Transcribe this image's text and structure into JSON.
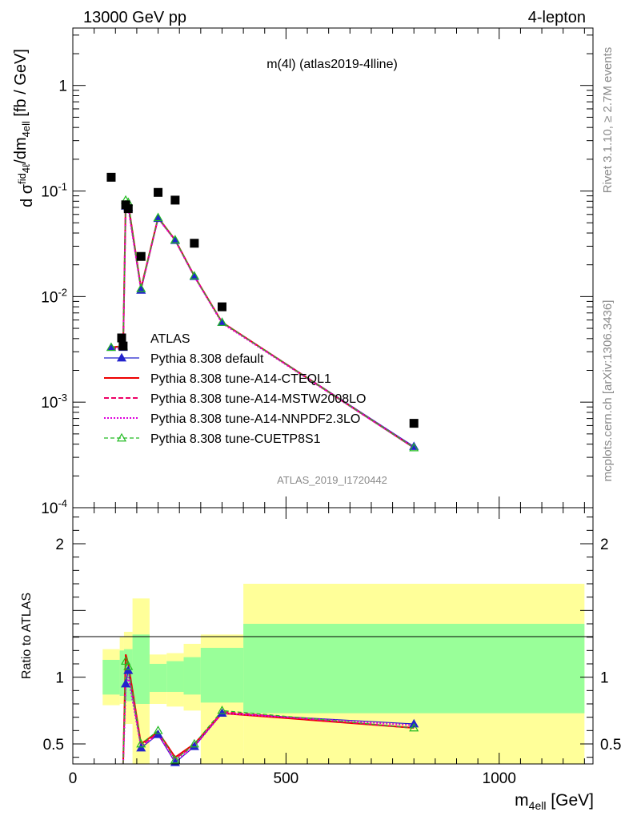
{
  "header": {
    "left": "13000 GeV pp",
    "right": "4-lepton"
  },
  "plot_title": "m(4l) (atlas2019-4lline)",
  "analysis_id": "ATLAS_2019_I1720442",
  "side_text": {
    "rivet": "Rivet 3.1.10, ≥ 2.7M events",
    "mcplots": "mcplots.cern.ch [arXiv:1306.3436]"
  },
  "colors": {
    "default": "#2222cc",
    "a14_cteql1": "#ee0000",
    "a14_mstw": "#ee0066",
    "a14_nnpdf": "#dd00dd",
    "cuetp8s1": "#22bb22",
    "band_inner": "#99ff99",
    "band_outer": "#ffff99"
  },
  "chart_data": [
    {
      "type": "line",
      "name": "main",
      "scale": "log",
      "ylabel": "dσ^fid_4ℓ/dm_4ℓ [fb / GeV]",
      "xlim": [
        0,
        1220
      ],
      "ylim": [
        0.0001,
        3.5
      ],
      "y_ticks": [
        "10^-4",
        "10^-3",
        "10^-2",
        "10^-1",
        "1"
      ],
      "legend_position": "center-left",
      "x": [
        90,
        118,
        124,
        130,
        160,
        200,
        240,
        285,
        350,
        800
      ],
      "data": {
        "name": "ATLAS",
        "marker": "square",
        "values": [
          0.135,
          0.0034,
          0.074,
          0.068,
          0.024,
          0.097,
          0.082,
          0.032,
          0.008,
          0.00063
        ]
      },
      "series": [
        {
          "name": "Pythia 8.308 default",
          "style": "solid-triangle",
          "values": [
            0.0033,
            0.0033,
            0.072,
            0.07,
            0.0115,
            0.055,
            0.034,
            0.0155,
            0.0057,
            0.00038
          ]
        },
        {
          "name": "Pythia 8.308 tune-A14-CTEQL1",
          "style": "solid",
          "values": [
            0.0033,
            0.0034,
            0.079,
            0.076,
            0.012,
            0.056,
            0.0345,
            0.0157,
            0.0057,
            0.00037
          ]
        },
        {
          "name": "Pythia 8.308 tune-A14-MSTW2008LO",
          "style": "dashed",
          "values": [
            0.0032,
            0.0033,
            0.076,
            0.074,
            0.0118,
            0.0555,
            0.0342,
            0.0156,
            0.0057,
            0.00037
          ]
        },
        {
          "name": "Pythia 8.308 tune-A14-NNPDF2.3LO",
          "style": "dotted",
          "values": [
            0.0032,
            0.0032,
            0.07,
            0.069,
            0.0116,
            0.055,
            0.034,
            0.0155,
            0.0056,
            0.00037
          ]
        },
        {
          "name": "Pythia 8.308 tune-CUETP8S1",
          "style": "dashed-open-triangle",
          "values": [
            0.0033,
            0.0034,
            0.082,
            0.078,
            0.0119,
            0.056,
            0.0345,
            0.0157,
            0.0057,
            0.00037
          ]
        }
      ]
    },
    {
      "type": "line",
      "name": "ratio",
      "ylabel": "Ratio to ATLAS",
      "xlabel": "m_4ℓ [GeV]",
      "xlim": [
        0,
        1220
      ],
      "ylim": [
        0.35,
        2.27
      ],
      "x_ticks": [
        0,
        500,
        1000
      ],
      "y_ticks": [
        0.5,
        1,
        2
      ],
      "reference_line": 1,
      "bands": [
        {
          "x0": 70,
          "x1": 110,
          "inner": [
            0.87,
            1.13
          ],
          "outer": [
            0.79,
            1.21
          ]
        },
        {
          "x0": 110,
          "x1": 120,
          "inner": [
            0.86,
            1.2
          ],
          "outer": [
            0.8,
            1.3
          ]
        },
        {
          "x0": 120,
          "x1": 140,
          "inner": [
            0.82,
            1.21
          ],
          "outer": [
            0.65,
            1.34
          ]
        },
        {
          "x0": 140,
          "x1": 180,
          "inner": [
            0.8,
            1.32
          ],
          "outer": [
            0.3,
            1.59
          ]
        },
        {
          "x0": 180,
          "x1": 220,
          "inner": [
            0.89,
            1.1
          ],
          "outer": [
            0.8,
            1.17
          ]
        },
        {
          "x0": 220,
          "x1": 260,
          "inner": [
            0.89,
            1.12
          ],
          "outer": [
            0.78,
            1.18
          ]
        },
        {
          "x0": 260,
          "x1": 300,
          "inner": [
            0.87,
            1.15
          ],
          "outer": [
            0.75,
            1.25
          ]
        },
        {
          "x0": 300,
          "x1": 400,
          "inner": [
            0.81,
            1.22
          ],
          "outer": [
            0.3,
            1.32
          ]
        },
        {
          "x0": 400,
          "x1": 1200,
          "inner": [
            0.73,
            1.4
          ],
          "outer": [
            0.3,
            1.7
          ]
        }
      ],
      "x": [
        118,
        124,
        130,
        160,
        200,
        240,
        285,
        350,
        800
      ],
      "series": [
        {
          "name": "Pythia 8.308 default",
          "values": [
            0.25,
            0.95,
            1.05,
            0.47,
            0.57,
            0.36,
            0.48,
            0.73,
            0.65
          ]
        },
        {
          "name": "Pythia 8.308 tune-A14-CTEQL1",
          "values": [
            0.3,
            1.17,
            1.1,
            0.5,
            0.59,
            0.4,
            0.5,
            0.73,
            0.62
          ]
        },
        {
          "name": "Pythia 8.308 tune-A14-MSTW2008LO",
          "values": [
            0.28,
            1.05,
            1.07,
            0.49,
            0.58,
            0.39,
            0.49,
            0.74,
            0.62
          ]
        },
        {
          "name": "Pythia 8.308 tune-A14-NNPDF2.3LO",
          "values": [
            0.25,
            0.92,
            1.0,
            0.48,
            0.57,
            0.37,
            0.48,
            0.73,
            0.64
          ]
        },
        {
          "name": "Pythia 8.308 tune-CUETP8S1",
          "values": [
            0.32,
            1.12,
            1.08,
            0.5,
            0.6,
            0.38,
            0.5,
            0.75,
            0.62
          ]
        }
      ]
    }
  ]
}
